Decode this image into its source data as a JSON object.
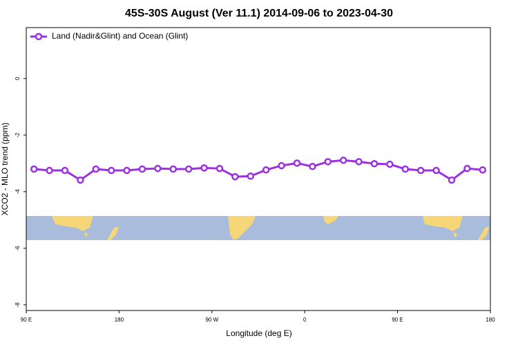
{
  "chart_data": {
    "type": "line",
    "title": "45S-30S August (Ver 11.1)   2014-09-06 to 2023-04-30",
    "x_label": "Longitude (deg E)",
    "y_label": "XCO2 - MLO trend (ppm)",
    "x": [
      97.5,
      112.5,
      127.5,
      142.5,
      157.5,
      172.5,
      187.5,
      202.5,
      217.5,
      232.5,
      247.5,
      262.5,
      277.5,
      292.5,
      307.5,
      322.5,
      337.5,
      352.5,
      367.5,
      382.5,
      397.5,
      412.5,
      427.5,
      442.5,
      457.5,
      472.5,
      487.5,
      502.5,
      517.5,
      532.5
    ],
    "series": [
      {
        "name": "Land (Nadir&Glint) and Ocean (Glint)",
        "color": "#9b30e0",
        "values": [
          -3.2,
          -3.25,
          -3.25,
          -3.59,
          -3.2,
          -3.25,
          -3.25,
          -3.2,
          -3.18,
          -3.2,
          -3.2,
          -3.16,
          -3.18,
          -3.47,
          -3.45,
          -3.23,
          -3.08,
          -2.99,
          -3.11,
          -2.94,
          -2.89,
          -2.94,
          -3.01,
          -3.03,
          -3.2,
          -3.25,
          -3.25,
          -3.59,
          -3.18,
          -3.23
        ]
      }
    ],
    "xlim": [
      90,
      540
    ],
    "xticks": [
      {
        "value": 90,
        "label": "90 E"
      },
      180,
      {
        "value": 270,
        "label": "90 W"
      },
      {
        "value": 360,
        "label": "0"
      },
      {
        "value": 450,
        "label": "90 E"
      },
      {
        "value": 540,
        "label": "180"
      }
    ],
    "ylim": [
      -8.2,
      1.8
    ],
    "yticks": [
      0,
      -2,
      -4,
      -6,
      -8
    ],
    "legend": "top-left"
  }
}
